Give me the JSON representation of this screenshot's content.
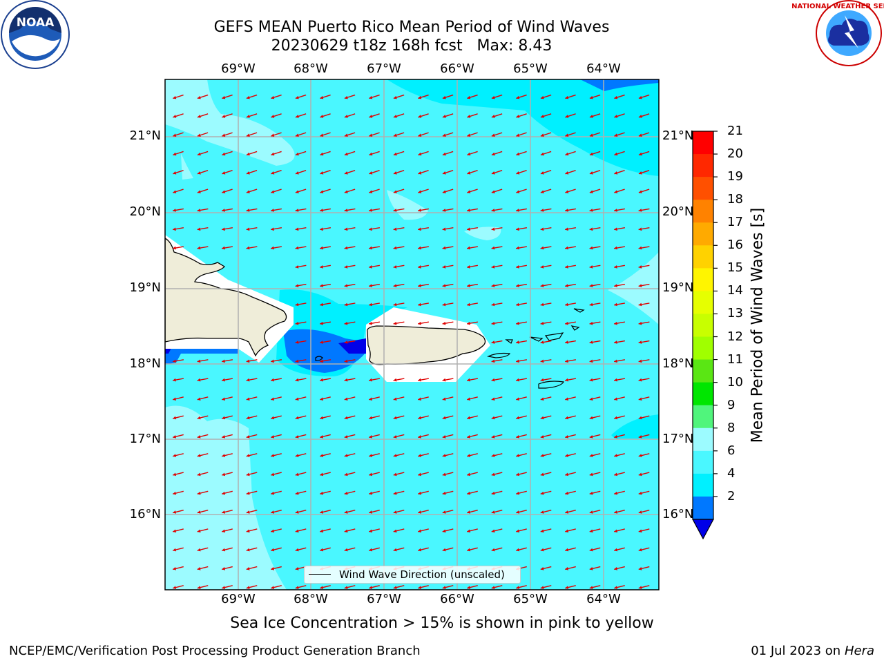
{
  "title": {
    "line1": "GEFS MEAN Puerto Rico Mean Period of Wind Waves",
    "line2": "20230629 t18z 168h fcst   Max: 8.43"
  },
  "logos": {
    "left": "NOAA",
    "right": "NATIONAL WEATHER SERVICE"
  },
  "map": {
    "lon_ticks": [
      "69°W",
      "68°W",
      "67°W",
      "66°W",
      "65°W",
      "64°W"
    ],
    "lat_ticks": [
      "21°N",
      "20°N",
      "19°N",
      "18°N",
      "17°N",
      "16°N"
    ],
    "ocean_colors": {
      "c6_8": "#4af7ff",
      "c8_9": "#9cfbff",
      "c4_6": "#00f0ff",
      "c2_4": "#0078ff",
      "c_lt2": "#0000e8"
    },
    "land_color": "#efedd9",
    "arrow_color": "#e00000",
    "legend_label": "Wind Wave Direction (unscaled)"
  },
  "colorbar": {
    "label": "Mean Period of Wind Waves [s]",
    "ticks": [
      "21",
      "20",
      "19",
      "18",
      "17",
      "16",
      "15",
      "14",
      "13",
      "12",
      "11",
      "10",
      "9",
      "8",
      "6",
      "4",
      "2"
    ],
    "colors": [
      "#ff0000",
      "#ff2800",
      "#ff5000",
      "#ff8200",
      "#ffaa00",
      "#ffd200",
      "#fff500",
      "#e6ff00",
      "#c8ff00",
      "#a0ff00",
      "#5ae614",
      "#00e600",
      "#50f57c",
      "#9cfbff",
      "#4af7ff",
      "#00f0ff",
      "#0078ff",
      "#0000e8"
    ]
  },
  "note": "Sea Ice Concentration > 15% is shown in pink to yellow",
  "footer": {
    "left": "NCEP/EMC/Verification Post Processing Product Generation Branch",
    "right_prefix": "01 Jul 2023 on ",
    "right_host": "Hera"
  }
}
